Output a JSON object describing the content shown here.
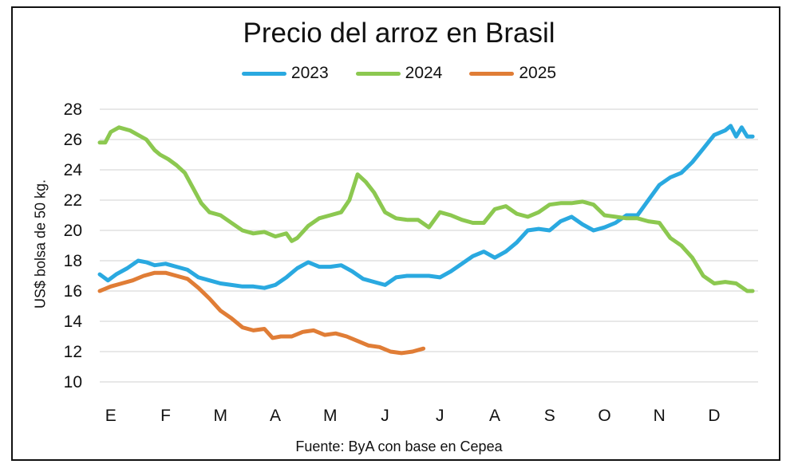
{
  "colors": {
    "2023": "#2aa9e0",
    "2024": "#8cc850",
    "2025": "#e07d36",
    "grid": "#d9d9d9",
    "text": "#111111"
  },
  "chart_data": {
    "type": "line",
    "title": "Precio del arroz en Brasil",
    "ylabel": "US$ bolsa de 50 kg.",
    "source": "Fuente: ByA con base en Cepea",
    "ylim": [
      10,
      28
    ],
    "yticks": [
      "10",
      "12",
      "14",
      "16",
      "18",
      "20",
      "22",
      "24",
      "26",
      "28"
    ],
    "x_months": [
      "E",
      "F",
      "M",
      "A",
      "M",
      "J",
      "J",
      "A",
      "S",
      "O",
      "N",
      "D"
    ],
    "legend_position": "top-center",
    "grid": true,
    "series": [
      {
        "name": "2023",
        "color": "#2aa9e0",
        "x": [
          0,
          0.15,
          0.3,
          0.5,
          0.7,
          0.85,
          1.0,
          1.2,
          1.4,
          1.6,
          1.8,
          2.0,
          2.2,
          2.4,
          2.6,
          2.8,
          3.0,
          3.2,
          3.4,
          3.5,
          3.6,
          3.8,
          4.0,
          4.2,
          4.4,
          4.6,
          4.8,
          5.0,
          5.2,
          5.4,
          5.6,
          5.8,
          6.0,
          6.2,
          6.4,
          6.6,
          6.8,
          7.0,
          7.2,
          7.4,
          7.6,
          7.8,
          8.0,
          8.2,
          8.4,
          8.6,
          8.8,
          9.0,
          9.2,
          9.4,
          9.6,
          9.8,
          10.0,
          10.2,
          10.4,
          10.6,
          10.8,
          11.0,
          11.2,
          11.4,
          11.5,
          11.6,
          11.7,
          11.8,
          11.9
        ],
        "values": [
          17.1,
          16.7,
          17.1,
          17.5,
          18.0,
          17.9,
          17.7,
          17.8,
          17.6,
          17.4,
          16.9,
          16.7,
          16.5,
          16.4,
          16.3,
          16.3,
          16.2,
          16.4,
          16.9,
          17.2,
          17.5,
          17.9,
          17.6,
          17.6,
          17.7,
          17.3,
          16.8,
          16.6,
          16.4,
          16.9,
          17.0,
          17.0,
          17.0,
          16.9,
          17.3,
          17.8,
          18.3,
          18.6,
          18.2,
          18.6,
          19.2,
          20.0,
          20.1,
          20.0,
          20.6,
          20.9,
          20.4,
          20.0,
          20.2,
          20.5,
          21.0,
          21.0,
          22.0,
          23.0,
          23.5,
          23.8,
          24.5,
          25.4,
          26.3,
          26.6,
          26.9,
          26.2,
          26.8,
          26.2,
          26.2
        ]
      },
      {
        "name": "2024",
        "color": "#8cc850",
        "x": [
          0,
          0.1,
          0.2,
          0.35,
          0.55,
          0.7,
          0.85,
          1.0,
          1.1,
          1.25,
          1.4,
          1.55,
          1.7,
          1.85,
          2.0,
          2.2,
          2.4,
          2.6,
          2.8,
          3.0,
          3.2,
          3.4,
          3.5,
          3.6,
          3.8,
          4.0,
          4.2,
          4.4,
          4.55,
          4.7,
          4.85,
          5.0,
          5.2,
          5.4,
          5.6,
          5.8,
          6.0,
          6.2,
          6.4,
          6.6,
          6.8,
          7.0,
          7.2,
          7.4,
          7.6,
          7.8,
          8.0,
          8.2,
          8.4,
          8.6,
          8.8,
          9.0,
          9.2,
          9.4,
          9.6,
          9.8,
          10.0,
          10.2,
          10.4,
          10.6,
          10.8,
          11.0,
          11.2,
          11.4,
          11.6,
          11.8,
          11.9
        ],
        "values": [
          25.8,
          25.8,
          26.5,
          26.8,
          26.6,
          26.3,
          26.0,
          25.3,
          25.0,
          24.7,
          24.3,
          23.8,
          22.8,
          21.8,
          21.2,
          21.0,
          20.5,
          20.0,
          19.8,
          19.9,
          19.6,
          19.8,
          19.3,
          19.5,
          20.3,
          20.8,
          21.0,
          21.2,
          22.0,
          23.7,
          23.2,
          22.5,
          21.2,
          20.8,
          20.7,
          20.7,
          20.2,
          21.2,
          21.0,
          20.7,
          20.5,
          20.5,
          21.4,
          21.6,
          21.1,
          20.9,
          21.2,
          21.7,
          21.8,
          21.8,
          21.9,
          21.7,
          21.0,
          20.9,
          20.8,
          20.8,
          20.6,
          20.5,
          19.5,
          19.0,
          18.2,
          17.0,
          16.5,
          16.6,
          16.5,
          16.0,
          16.0
        ]
      },
      {
        "name": "2025",
        "color": "#e07d36",
        "x": [
          0,
          0.2,
          0.4,
          0.6,
          0.8,
          1.0,
          1.2,
          1.4,
          1.6,
          1.8,
          2.0,
          2.2,
          2.4,
          2.6,
          2.8,
          3.0,
          3.15,
          3.3,
          3.5,
          3.7,
          3.9,
          4.1,
          4.3,
          4.5,
          4.7,
          4.9,
          5.1,
          5.3,
          5.5,
          5.7,
          5.9
        ],
        "values": [
          16.0,
          16.3,
          16.5,
          16.7,
          17.0,
          17.2,
          17.2,
          17.0,
          16.8,
          16.2,
          15.5,
          14.7,
          14.2,
          13.6,
          13.4,
          13.5,
          12.9,
          13.0,
          13.0,
          13.3,
          13.4,
          13.1,
          13.2,
          13.0,
          12.7,
          12.4,
          12.3,
          12.0,
          11.9,
          12.0,
          12.2
        ]
      }
    ]
  }
}
